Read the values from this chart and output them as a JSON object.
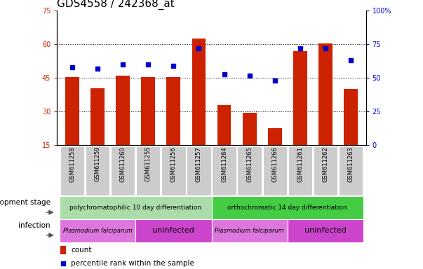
{
  "title": "GDS4558 / 242368_at",
  "samples": [
    "GSM611258",
    "GSM611259",
    "GSM611260",
    "GSM611255",
    "GSM611256",
    "GSM611257",
    "GSM611264",
    "GSM611265",
    "GSM611266",
    "GSM611261",
    "GSM611262",
    "GSM611263"
  ],
  "counts": [
    45.5,
    40.5,
    46.0,
    45.5,
    45.5,
    62.5,
    33.0,
    29.5,
    22.5,
    57.0,
    60.5,
    40.0
  ],
  "percentiles": [
    58,
    57,
    60,
    60,
    59,
    72,
    53,
    52,
    48,
    72,
    72,
    63
  ],
  "ylim_left": [
    15,
    75
  ],
  "ylim_right": [
    0,
    100
  ],
  "yticks_left": [
    15,
    30,
    45,
    60,
    75
  ],
  "yticks_right": [
    0,
    25,
    50,
    75,
    100
  ],
  "bar_color": "#cc2200",
  "dot_color": "#0000cc",
  "left_tick_color": "#cc2200",
  "right_tick_color": "#0000cc",
  "dev_stage_groups": [
    {
      "label": "polychromatophilic 10 day differentiation",
      "start": 0,
      "end": 5,
      "color": "#aaddaa"
    },
    {
      "label": "orthochromatic 14 day differentiation",
      "start": 6,
      "end": 11,
      "color": "#44cc44"
    }
  ],
  "infection_groups": [
    {
      "label": "Plasmodium falciparum",
      "start": 0,
      "end": 2,
      "color": "#dd77dd"
    },
    {
      "label": "uninfected",
      "start": 3,
      "end": 5,
      "color": "#cc44cc"
    },
    {
      "label": "Plasmodium falciparum",
      "start": 6,
      "end": 8,
      "color": "#dd77dd"
    },
    {
      "label": "uninfected",
      "start": 9,
      "end": 11,
      "color": "#cc44cc"
    }
  ],
  "legend_count_color": "#cc2200",
  "legend_pct_color": "#0000cc",
  "title_fontsize": 11,
  "sample_fontsize": 6,
  "row_fontsize": 6.5,
  "label_fontsize": 7.5,
  "tick_fontsize": 7,
  "sample_box_color": "#cccccc",
  "right_tick_label": "100%"
}
